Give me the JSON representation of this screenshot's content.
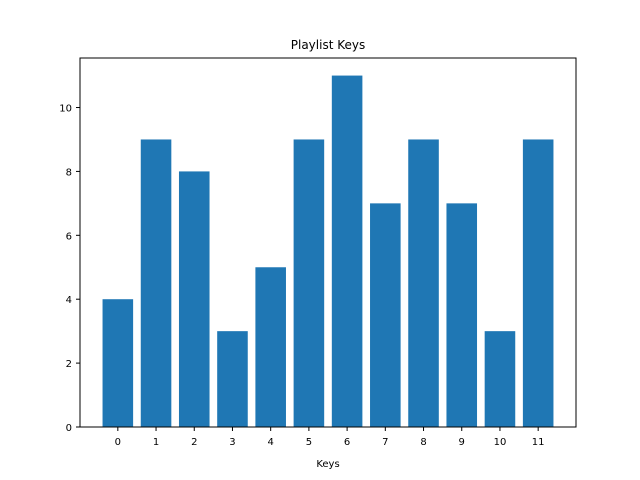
{
  "chart_data": {
    "type": "bar",
    "title": "Playlist Keys",
    "xlabel": "Keys",
    "ylabel": "",
    "categories": [
      "0",
      "1",
      "2",
      "3",
      "4",
      "5",
      "6",
      "7",
      "8",
      "9",
      "10",
      "11"
    ],
    "values": [
      4,
      9,
      8,
      3,
      5,
      9,
      11,
      7,
      9,
      7,
      3,
      9
    ],
    "ylim": [
      0,
      11.55
    ],
    "yticks": [
      "0",
      "2",
      "4",
      "6",
      "8",
      "10"
    ],
    "grid": false,
    "bar_color": "#1f77b4"
  }
}
